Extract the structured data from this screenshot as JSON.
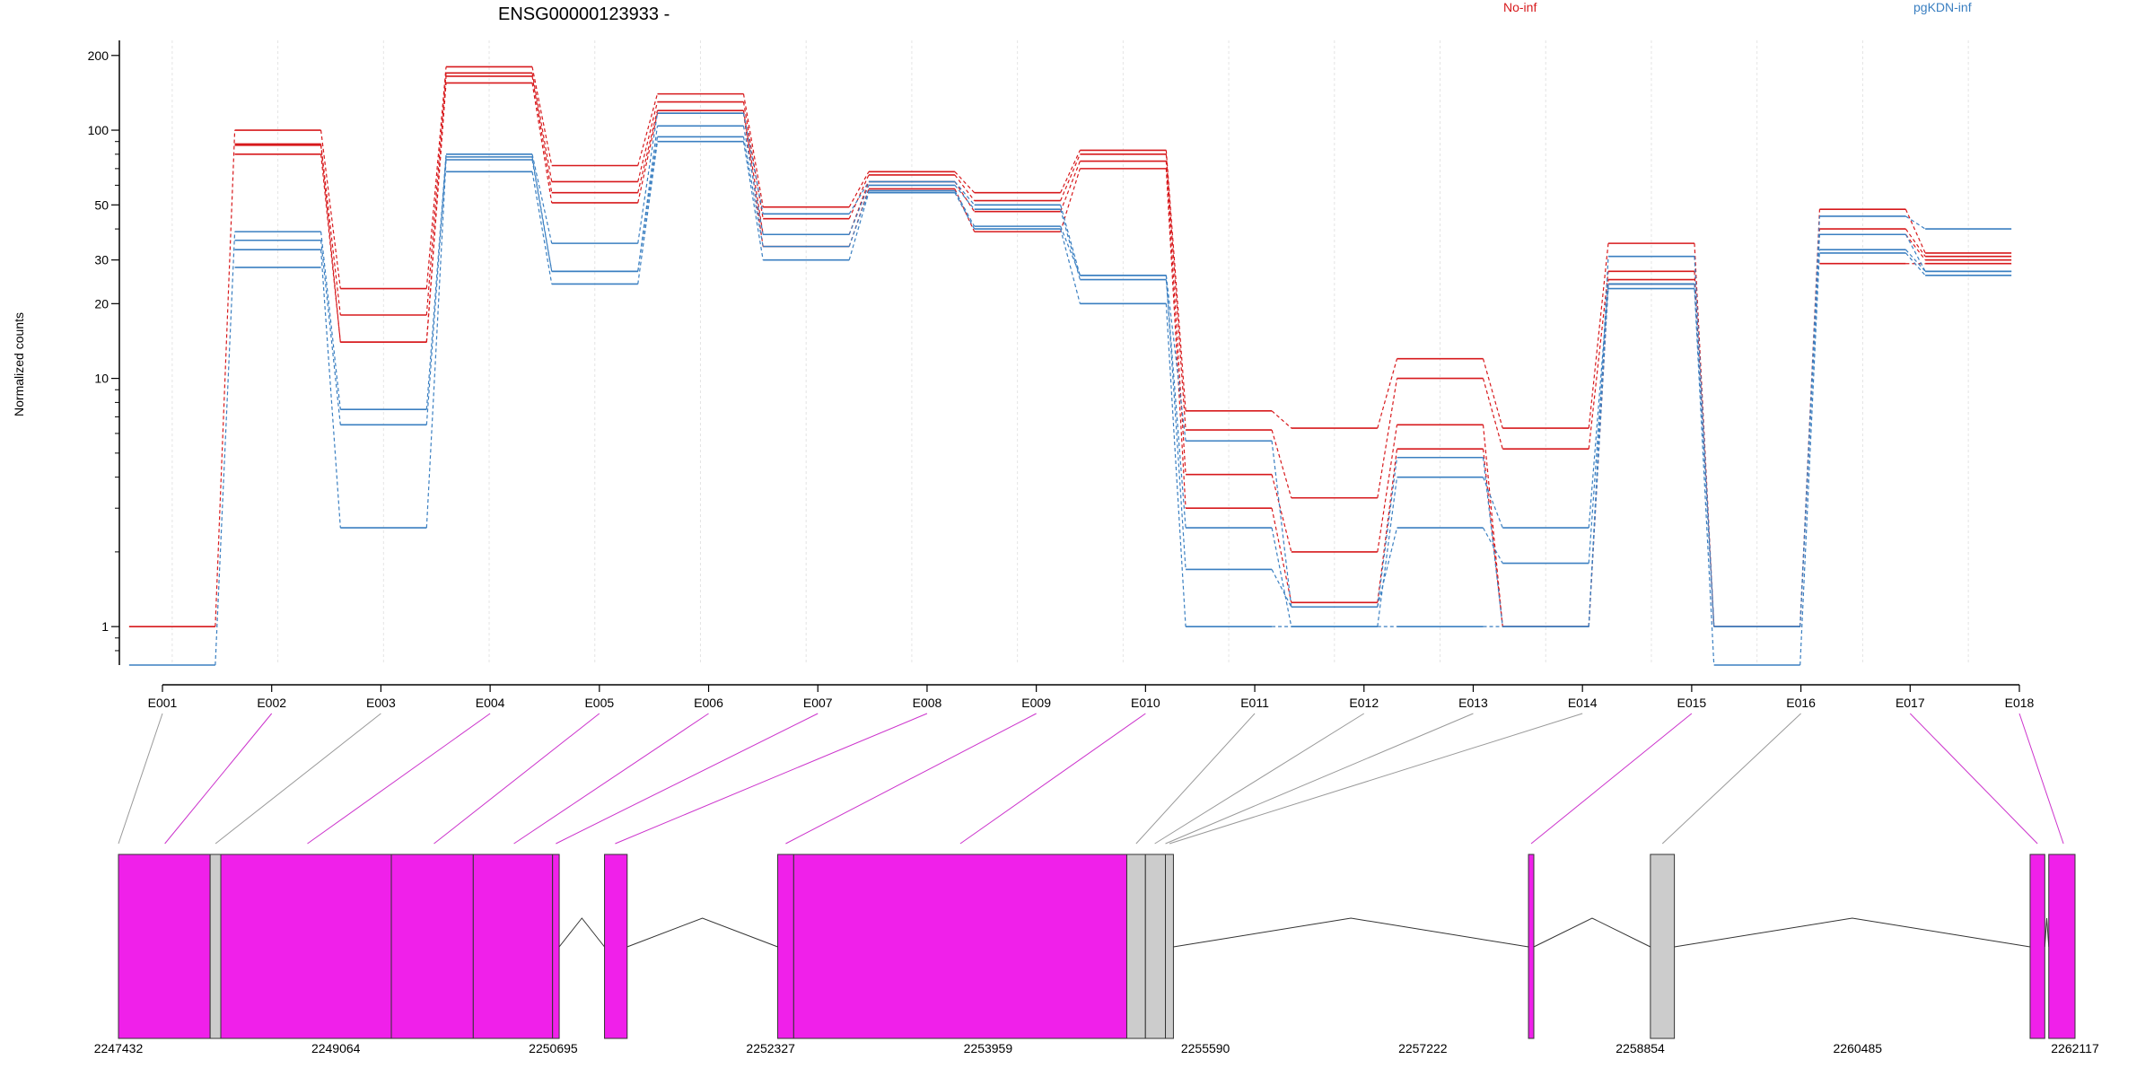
{
  "chart_data": {
    "type": "line",
    "title": "ENSG00000123933 -",
    "ylabel": "Normalized counts",
    "y_scale": "log",
    "y_ticks": [
      1,
      10,
      20,
      30,
      50,
      100,
      200
    ],
    "categories": [
      "E001",
      "E002",
      "E003",
      "E004",
      "E005",
      "E006",
      "E007",
      "E008",
      "E009",
      "E010",
      "E011",
      "E012",
      "E013",
      "E014",
      "E015",
      "E016",
      "E017",
      "E018"
    ],
    "series": [
      {
        "name": "No-inf",
        "group": "No-inf",
        "color": "#d7191c",
        "values": [
          1,
          100,
          23,
          180,
          72,
          140,
          49,
          68,
          56,
          83,
          7.4,
          6.3,
          12,
          6.3,
          35,
          1,
          48,
          32
        ]
      },
      {
        "name": "",
        "group": "No-inf",
        "color": "#d7191c",
        "values": [
          null,
          88,
          18,
          170,
          62,
          130,
          44,
          66,
          52,
          80,
          6.2,
          3.3,
          10,
          5.2,
          27,
          1,
          40,
          31
        ]
      },
      {
        "name": "",
        "group": "No-inf",
        "color": "#d7191c",
        "values": [
          null,
          87,
          14,
          165,
          56,
          120,
          38,
          62,
          47,
          75,
          4.1,
          2.0,
          6.5,
          1.0,
          25,
          null,
          38,
          30
        ]
      },
      {
        "name": "",
        "group": "No-inf",
        "color": "#d7191c",
        "values": [
          null,
          80,
          14,
          155,
          51,
          117,
          34,
          58,
          39,
          70,
          3.0,
          1.25,
          5.2,
          1.0,
          24,
          null,
          29,
          29
        ]
      },
      {
        "name": "pgKDN-inf",
        "group": "pgKDN-inf",
        "color": "#3a7fc1",
        "values": [
          0.7,
          39,
          7.5,
          80,
          35,
          117,
          46,
          62,
          50,
          26,
          5.6,
          1.2,
          4.8,
          1.0,
          31,
          1,
          45,
          40
        ]
      },
      {
        "name": "",
        "group": "pgKDN-inf",
        "color": "#3a7fc1",
        "values": [
          null,
          36,
          6.5,
          78,
          27,
          104,
          38,
          60,
          48,
          25,
          2.5,
          1.0,
          4.0,
          2.5,
          24,
          1,
          38,
          27
        ]
      },
      {
        "name": "",
        "group": "pgKDN-inf",
        "color": "#3a7fc1",
        "values": [
          null,
          33,
          2.5,
          76,
          27,
          94,
          34,
          57,
          41,
          26,
          1.7,
          1.2,
          2.5,
          1.8,
          23,
          0.7,
          33,
          27
        ]
      },
      {
        "name": "",
        "group": "pgKDN-inf",
        "color": "#3a7fc1",
        "values": [
          null,
          28,
          null,
          68,
          24,
          90,
          30,
          56,
          40,
          20,
          1,
          1,
          1,
          1,
          24,
          null,
          32,
          26
        ]
      }
    ],
    "legend": [
      "No-inf",
      "pgKDN-inf"
    ],
    "gene_track": {
      "coordinate_labels": [
        "2247432",
        "2249064",
        "2250695",
        "2252327",
        "2253959",
        "2255590",
        "2257222",
        "2258854",
        "2260485",
        "2262117"
      ],
      "coord_start": 2247432,
      "coord_end": 2262117,
      "exons": [
        {
          "id": "E001",
          "start": 2247432,
          "end": 2248120,
          "kind": "exon"
        },
        {
          "id": "E002",
          "start": 2248120,
          "end": 2248200,
          "kind": "intron-retention"
        },
        {
          "id": "E003",
          "start": 2248200,
          "end": 2249480,
          "kind": "exon"
        },
        {
          "id": "E004",
          "start": 2249480,
          "end": 2250095,
          "kind": "exon"
        },
        {
          "id": "E005",
          "start": 2250095,
          "end": 2250690,
          "kind": "exon"
        },
        {
          "id": "E006",
          "start": 2250690,
          "end": 2250740,
          "kind": "exon"
        },
        {
          "id": "E007",
          "start": 2251080,
          "end": 2251250,
          "kind": "exon"
        },
        {
          "id": "E008",
          "start": 2252380,
          "end": 2252500,
          "kind": "exon"
        },
        {
          "id": "E009",
          "start": 2252500,
          "end": 2255000,
          "kind": "exon"
        },
        {
          "id": "E010",
          "start": 2255000,
          "end": 2255140,
          "kind": "intron-retention"
        },
        {
          "id": "E011",
          "start": 2255140,
          "end": 2255290,
          "kind": "intron-retention"
        },
        {
          "id": "E012",
          "start": 2255290,
          "end": 2255350,
          "kind": "intron-retention"
        },
        {
          "id": "E013",
          "start": 2258015,
          "end": 2258055,
          "kind": "exon"
        },
        {
          "id": "E014",
          "start": 2258930,
          "end": 2259110,
          "kind": "intron-retention"
        },
        {
          "id": "E015",
          "start": 2261780,
          "end": 2261890,
          "kind": "exon"
        },
        {
          "id": "E016",
          "start": 2261920,
          "end": 2262117,
          "kind": "exon"
        }
      ],
      "introns": [
        [
          2250740,
          2251080
        ],
        [
          2251250,
          2252380
        ],
        [
          2255350,
          2258015
        ],
        [
          2258055,
          2258930
        ],
        [
          2259110,
          2261780
        ],
        [
          2261890,
          2261920
        ]
      ],
      "connectors": [
        {
          "label": "E001",
          "target": 2247432,
          "color": "#999999"
        },
        {
          "label": "E002",
          "target": 2247780,
          "color": "#cc33cc"
        },
        {
          "label": "E003",
          "target": 2248160,
          "color": "#999999"
        },
        {
          "label": "E004",
          "target": 2248850,
          "color": "#cc33cc"
        },
        {
          "label": "E005",
          "target": 2249800,
          "color": "#cc33cc"
        },
        {
          "label": "E006",
          "target": 2250400,
          "color": "#cc33cc"
        },
        {
          "label": "E007",
          "target": 2250715,
          "color": "#cc33cc"
        },
        {
          "label": "E008",
          "target": 2251160,
          "color": "#cc33cc"
        },
        {
          "label": "E009",
          "target": 2252440,
          "color": "#cc33cc"
        },
        {
          "label": "E010",
          "target": 2253750,
          "color": "#cc33cc"
        },
        {
          "label": "E011",
          "target": 2255070,
          "color": "#999999"
        },
        {
          "label": "E012",
          "target": 2255210,
          "color": "#999999"
        },
        {
          "label": "E013",
          "target": 2255290,
          "color": "#999999"
        },
        {
          "label": "E014",
          "target": 2255320,
          "color": "#999999"
        },
        {
          "label": "E015",
          "target": 2258035,
          "color": "#cc33cc"
        },
        {
          "label": "E016",
          "target": 2259020,
          "color": "#999999"
        },
        {
          "label": "E017",
          "target": 2261835,
          "color": "#cc33cc"
        },
        {
          "label": "E018",
          "target": 2262030,
          "color": "#cc33cc"
        }
      ]
    },
    "colors": {
      "exon": "#f020ea",
      "intron_retention": "#cccccc",
      "no_inf": "#d7191c",
      "pgkdn_inf": "#3a7fc1"
    }
  }
}
